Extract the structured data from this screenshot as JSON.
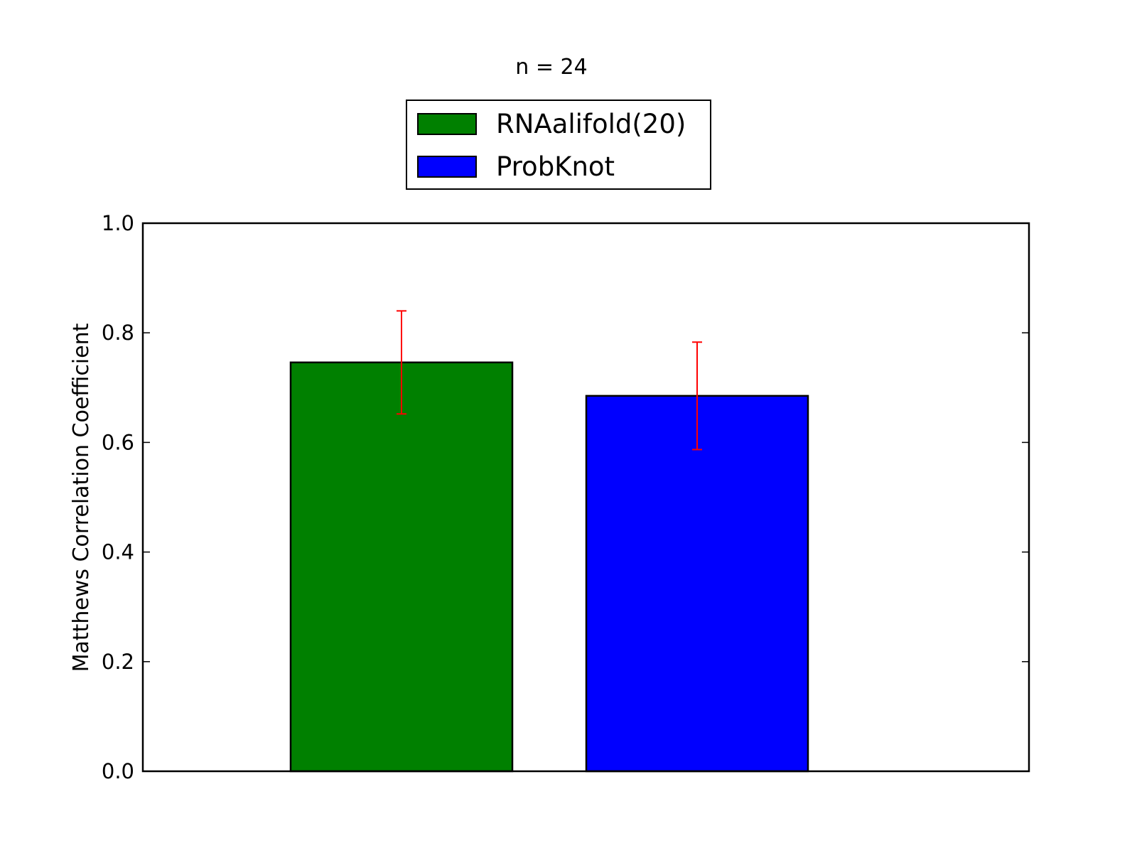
{
  "chart_data": {
    "type": "bar",
    "title": "n = 24",
    "xlabel": "",
    "ylabel": "Matthews Correlation Coefficient",
    "ylim": [
      0.0,
      1.0
    ],
    "yticks": [
      "0.0",
      "0.2",
      "0.4",
      "0.6",
      "0.8",
      "1.0"
    ],
    "grid": false,
    "legend_placement": "top-center, above axes",
    "series": [
      {
        "name": "RNAalifold(20)",
        "value": 0.746,
        "error": 0.094,
        "color": "#008000"
      },
      {
        "name": "ProbKnot",
        "value": 0.685,
        "error": 0.098,
        "color": "#0000ff"
      }
    ],
    "error_color": "#ff0000"
  }
}
